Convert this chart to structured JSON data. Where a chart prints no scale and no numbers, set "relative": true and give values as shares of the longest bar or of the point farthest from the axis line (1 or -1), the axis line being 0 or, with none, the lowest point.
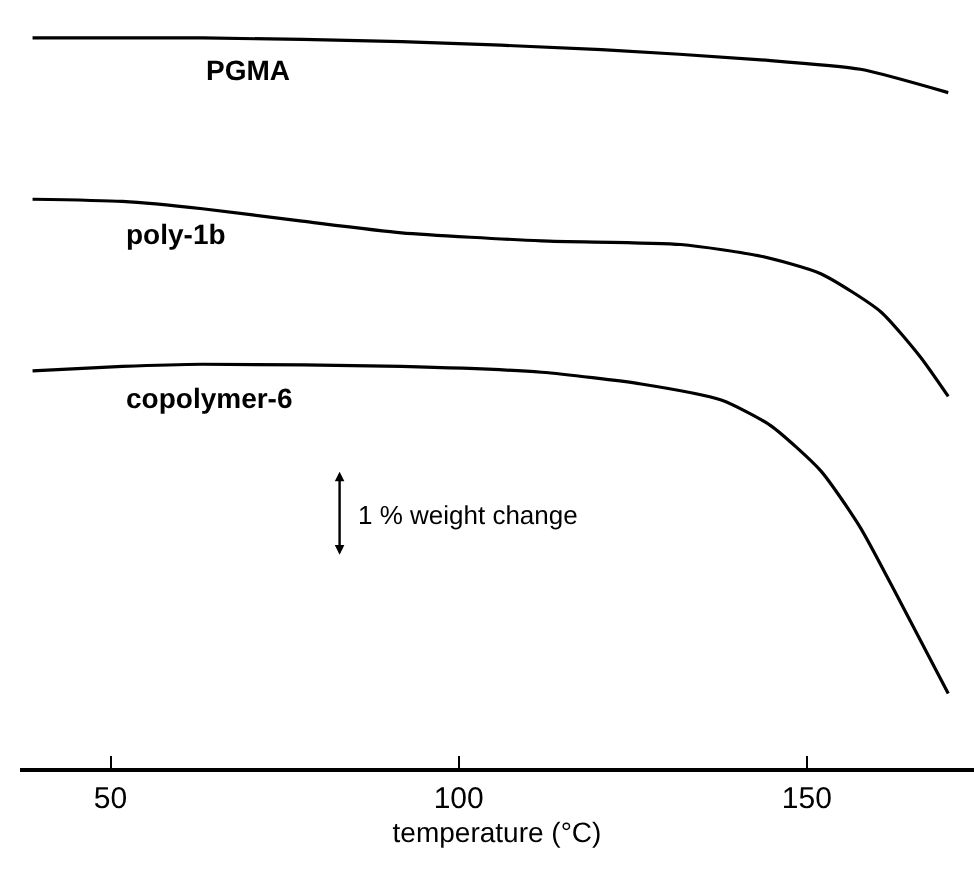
{
  "chart_data": {
    "type": "line",
    "relative": true,
    "xlabel": "temperature (°C)",
    "xlim": [
      37,
      174
    ],
    "xticks": [
      50,
      100,
      150
    ],
    "legend": false,
    "marker": "none",
    "line_style": "solid",
    "annotations": [
      "1 % weight change"
    ],
    "series": [
      {
        "name": "PGMA",
        "color": "#000000",
        "x": [
          38.8,
          63.2,
          91.8,
          120.5,
          143.4,
          157.7,
          170.3
        ],
        "values": [
          1.0,
          1.0,
          0.995,
          0.984,
          0.97,
          0.957,
          0.925
        ]
      },
      {
        "name": "poly-1b",
        "color": "#000000",
        "x": [
          38.8,
          51.7,
          63.2,
          77.5,
          91.8,
          111.9,
          131.9,
          143.4,
          152.0,
          160.6,
          166.3,
          170.3
        ],
        "values": [
          0.779,
          0.776,
          0.766,
          0.749,
          0.733,
          0.722,
          0.717,
          0.701,
          0.677,
          0.625,
          0.563,
          0.509
        ]
      },
      {
        "name": "copolymer-6",
        "color": "#000000",
        "x": [
          38.8,
          51.7,
          63.2,
          91.8,
          111.9,
          126.2,
          137.7,
          144.8,
          152.0,
          157.7,
          163.5,
          170.3
        ],
        "values": [
          0.544,
          0.55,
          0.553,
          0.55,
          0.542,
          0.526,
          0.504,
          0.469,
          0.407,
          0.329,
          0.226,
          0.102
        ]
      }
    ]
  }
}
